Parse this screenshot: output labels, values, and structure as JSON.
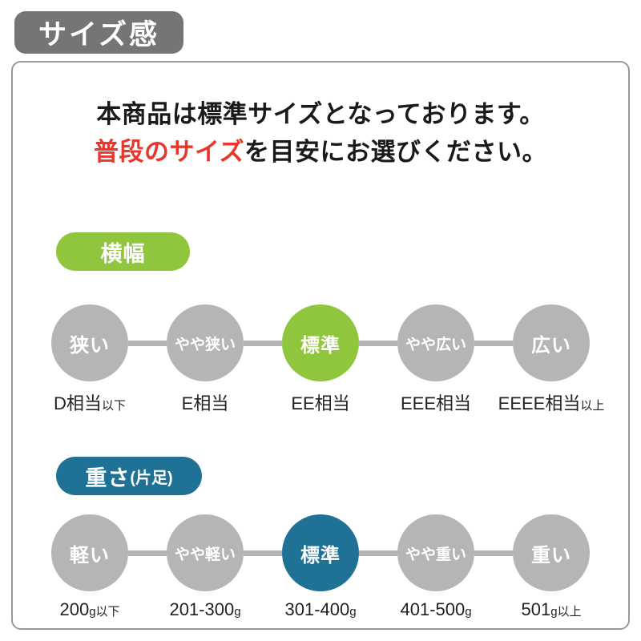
{
  "page_title_badge": "サイズ感",
  "colors": {
    "badge_gray": "#757575",
    "circle_gray": "#b5b5b5",
    "accent_green": "#8fc63d",
    "accent_blue": "#1f7195",
    "highlight_red": "#e8382d",
    "panel_border_gray": "#999999",
    "text_dark": "#1a1a1a"
  },
  "notice": {
    "line1": "本商品は標準サイズとなっております。",
    "line2_highlight": "普段のサイズ",
    "line2_rest": "を目安にお選びください。"
  },
  "sections": [
    {
      "id": "width",
      "pill_label": "横幅",
      "pill_suffix": "",
      "accent": "#8fc63d",
      "steps": [
        {
          "label": "狭い",
          "active": false
        },
        {
          "label": "やや狭い",
          "active": false
        },
        {
          "label": "標準",
          "active": true
        },
        {
          "label": "やや広い",
          "active": false
        },
        {
          "label": "広い",
          "active": false
        }
      ],
      "scale_labels": [
        {
          "main": "D相当",
          "suffix": "以下"
        },
        {
          "main": "E相当",
          "suffix": ""
        },
        {
          "main": "EE相当",
          "suffix": ""
        },
        {
          "main": "EEE相当",
          "suffix": ""
        },
        {
          "main": "EEEE相当",
          "suffix": "以上"
        }
      ]
    },
    {
      "id": "weight",
      "pill_label": "重さ",
      "pill_suffix": "(片足)",
      "accent": "#1f7195",
      "steps": [
        {
          "label": "軽い",
          "active": false
        },
        {
          "label": "やや軽い",
          "active": false
        },
        {
          "label": "標準",
          "active": true
        },
        {
          "label": "やや重い",
          "active": false
        },
        {
          "label": "重い",
          "active": false
        }
      ],
      "scale_labels": [
        {
          "main": "200",
          "suffix": "g以下"
        },
        {
          "main": "201-300",
          "suffix": "g"
        },
        {
          "main": "301-400",
          "suffix": "g"
        },
        {
          "main": "401-500",
          "suffix": "g"
        },
        {
          "main": "501",
          "suffix": "g以上"
        }
      ]
    }
  ]
}
